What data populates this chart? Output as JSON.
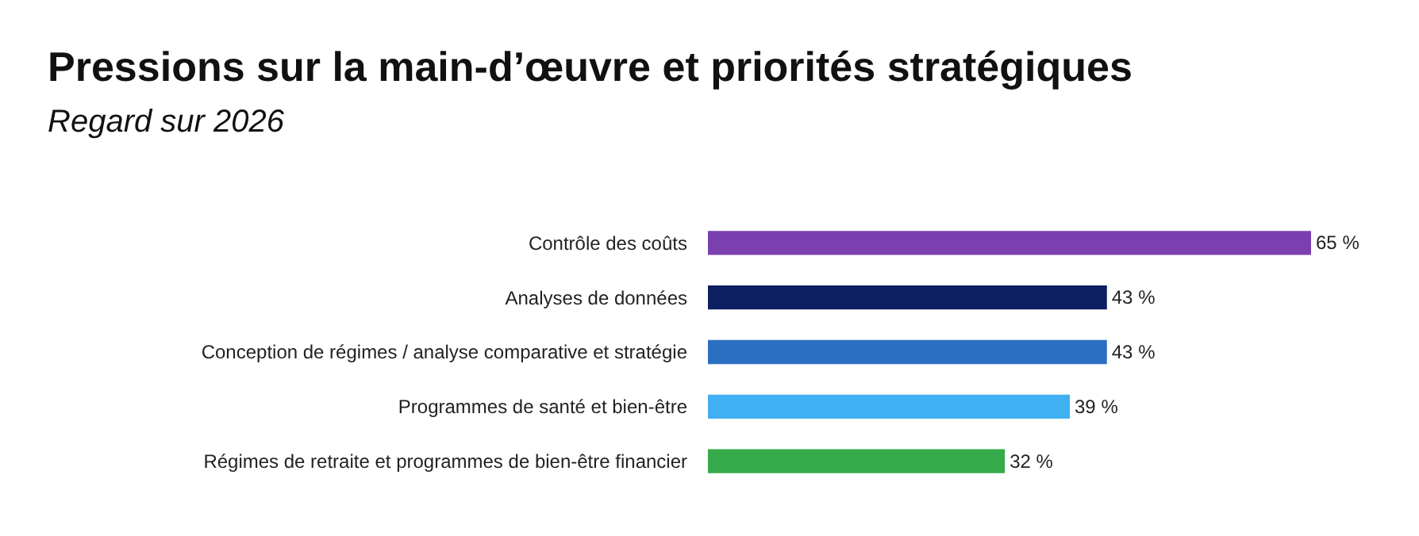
{
  "chart_data": {
    "type": "bar",
    "orientation": "horizontal",
    "title": "Pressions sur la main-d’œuvre et priorités stratégiques",
    "subtitle": "Regard sur 2026",
    "categories": [
      "Contrôle des coûts",
      "Analyses de données",
      "Conception de régimes / analyse comparative et stratégie",
      "Programmes de santé et bien-être",
      "Régimes de retraite et programmes de bien-être financier"
    ],
    "values": [
      65,
      43,
      43,
      39,
      32
    ],
    "colors": [
      "#7b3fb0",
      "#0c1f5e",
      "#2b6fc2",
      "#41b0f2",
      "#35aa4a"
    ],
    "value_labels": [
      "65 %",
      "43 %",
      "43 %",
      "39 %",
      "32 %"
    ],
    "legend": false
  }
}
